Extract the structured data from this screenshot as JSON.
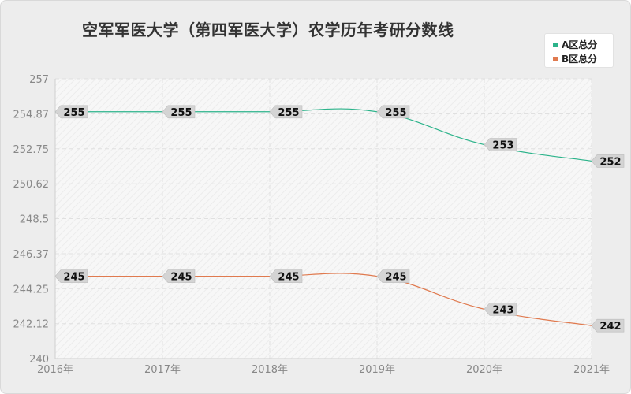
{
  "chart_data": {
    "type": "line",
    "title": "空军军医大学（第四军医大学）农学历年考研分数线",
    "categories": [
      "2016年",
      "2017年",
      "2018年",
      "2019年",
      "2020年",
      "2021年"
    ],
    "series": [
      {
        "name": "A区总分",
        "values": [
          255,
          255,
          255,
          255,
          253,
          252
        ],
        "color": "#2bb38a"
      },
      {
        "name": "B区总分",
        "values": [
          245,
          245,
          245,
          245,
          243,
          242
        ],
        "color": "#e07a4f"
      }
    ],
    "ylim": [
      240,
      257
    ],
    "yticks": [
      "240",
      "242.12",
      "244.25",
      "246.37",
      "248.5",
      "250.62",
      "252.75",
      "254.87",
      "257"
    ],
    "grid": true,
    "legend": "top-right"
  }
}
